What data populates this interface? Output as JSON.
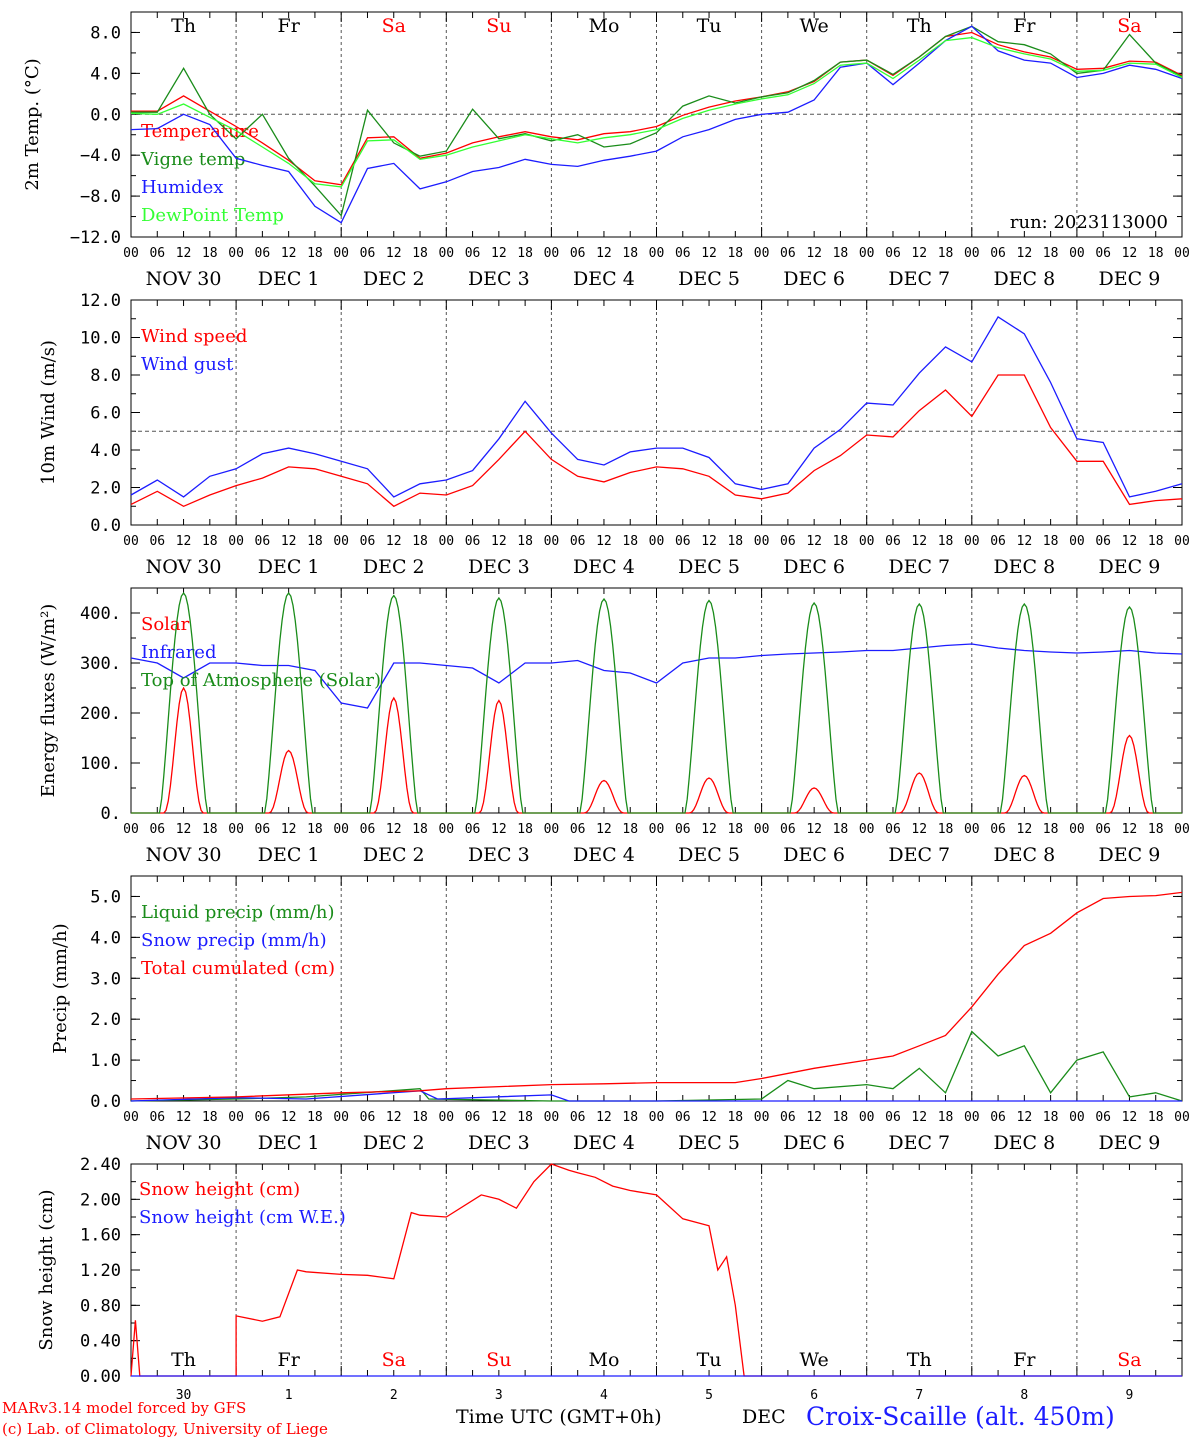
{
  "days": [
    "Th",
    "Fr",
    "Sa",
    "Su",
    "Mo",
    "Tu",
    "We",
    "Th",
    "Fr",
    "Sa"
  ],
  "weekend_days": [
    2,
    3,
    9
  ],
  "date_labels": [
    "NOV 30",
    "DEC  1",
    "DEC  2",
    "DEC  3",
    "DEC  4",
    "DEC  5",
    "DEC  6",
    "DEC  7",
    "DEC  8",
    "DEC  9"
  ],
  "hour_labels": [
    "00",
    "06",
    "12",
    "18"
  ],
  "hour_end": "00",
  "run_label": "run: 2023113000",
  "footer": {
    "credit1": "MARv3.14 model forced by GFS",
    "credit2": "(c) Lab. of Climatology, University of Liege",
    "xlabel": "Time UTC (GMT+0h)",
    "month": "DEC",
    "day_numbers": [
      "30",
      "1",
      "2",
      "3",
      "4",
      "5",
      "6",
      "7",
      "8",
      "9"
    ],
    "station": "Croix-Scaille (alt. 450m)"
  },
  "colors": {
    "red": "#ff0000",
    "green": "#1a8c1a",
    "blue": "#1c1cff",
    "lightgreen": "#33ff33",
    "text": "#000000",
    "grid": "#555555"
  },
  "chart_data": [
    {
      "type": "line",
      "ylabel": "2m Temp. (°C)",
      "ylim": [
        -12,
        10
      ],
      "yticks": [
        "8.0",
        "4.0",
        "0.0",
        "−4.0",
        "−8.0",
        "−12.0"
      ],
      "ytick_values": [
        8,
        4,
        0,
        -4,
        -8,
        -12
      ],
      "hline": 0,
      "x_unit": "hours from 2023-11-30 00 UTC",
      "series": [
        {
          "name": "Temperature",
          "color": "red",
          "x": [
            0,
            6,
            12,
            18,
            24,
            30,
            36,
            42,
            48,
            54,
            60,
            66,
            72,
            78,
            84,
            90,
            96,
            102,
            108,
            114,
            120,
            126,
            132,
            138,
            144,
            150,
            156,
            162,
            168,
            174,
            180,
            186,
            192,
            198,
            204,
            210,
            216,
            222,
            228,
            234,
            240
          ],
          "y": [
            0.3,
            0.3,
            1.8,
            0.3,
            -1.2,
            -2.8,
            -4.5,
            -6.5,
            -6.9,
            -2.3,
            -2.2,
            -4.3,
            -3.8,
            -2.8,
            -2.2,
            -1.7,
            -2.2,
            -2.5,
            -1.9,
            -1.7,
            -1.2,
            -0.1,
            0.7,
            1.3,
            1.7,
            2.2,
            3.2,
            5.1,
            5.3,
            3.8,
            5.6,
            7.6,
            8.0,
            6.8,
            6.1,
            5.6,
            4.4,
            4.5,
            5.2,
            5.1,
            3.8
          ]
        },
        {
          "name": "Vigne temp",
          "color": "green",
          "x": [
            0,
            6,
            12,
            18,
            24,
            30,
            36,
            42,
            48,
            54,
            60,
            66,
            72,
            78,
            84,
            90,
            96,
            102,
            108,
            114,
            120,
            126,
            132,
            138,
            144,
            150,
            156,
            162,
            168,
            174,
            180,
            186,
            192,
            198,
            204,
            210,
            216,
            222,
            228,
            234,
            240
          ],
          "y": [
            0.2,
            0.2,
            4.5,
            0.0,
            -2.4,
            0.0,
            -4.3,
            -7.0,
            -9.9,
            0.4,
            -2.8,
            -4.1,
            -3.6,
            0.5,
            -2.4,
            -1.9,
            -2.6,
            -2.0,
            -3.2,
            -2.9,
            -1.8,
            0.8,
            1.8,
            1.1,
            1.7,
            2.1,
            3.3,
            5.1,
            5.3,
            3.9,
            5.6,
            7.6,
            8.6,
            7.1,
            6.8,
            5.9,
            4.0,
            4.3,
            7.8,
            5.0,
            3.7
          ]
        },
        {
          "name": "Humidex",
          "color": "blue",
          "x": [
            0,
            6,
            12,
            18,
            24,
            30,
            36,
            42,
            48,
            54,
            60,
            66,
            72,
            78,
            84,
            90,
            96,
            102,
            108,
            114,
            120,
            126,
            132,
            138,
            144,
            150,
            156,
            162,
            168,
            174,
            180,
            186,
            192,
            198,
            204,
            210,
            216,
            222,
            228,
            234,
            240
          ],
          "y": [
            -1.5,
            -1.4,
            0.0,
            -1.0,
            -4.3,
            -5.0,
            -5.6,
            -9.0,
            -10.6,
            -5.3,
            -4.8,
            -7.3,
            -6.6,
            -5.6,
            -5.2,
            -4.4,
            -4.9,
            -5.1,
            -4.5,
            -4.1,
            -3.6,
            -2.2,
            -1.5,
            -0.5,
            0.0,
            0.2,
            1.4,
            4.6,
            5.0,
            2.9,
            5.0,
            7.2,
            8.6,
            6.2,
            5.3,
            5.0,
            3.6,
            4.0,
            4.8,
            4.4,
            3.5
          ]
        },
        {
          "name": "DewPoint Temp",
          "color": "lightgreen",
          "x": [
            0,
            6,
            12,
            18,
            24,
            30,
            36,
            42,
            48,
            54,
            60,
            66,
            72,
            78,
            84,
            90,
            96,
            102,
            108,
            114,
            120,
            126,
            132,
            138,
            144,
            150,
            156,
            162,
            168,
            174,
            180,
            186,
            192,
            198,
            204,
            210,
            216,
            222,
            228,
            234,
            240
          ],
          "y": [
            0.1,
            0.0,
            1.0,
            -0.3,
            -1.6,
            -3.2,
            -4.8,
            -6.8,
            -7.1,
            -2.6,
            -2.5,
            -4.4,
            -4.0,
            -3.2,
            -2.6,
            -2.0,
            -2.4,
            -2.8,
            -2.3,
            -2.0,
            -1.5,
            -0.4,
            0.4,
            1.0,
            1.5,
            1.9,
            3.0,
            4.8,
            5.0,
            3.5,
            5.3,
            7.2,
            7.5,
            6.5,
            5.9,
            5.4,
            4.2,
            4.3,
            5.0,
            4.9,
            3.6
          ]
        }
      ]
    },
    {
      "type": "line",
      "ylabel": "10m Wind (m/s)",
      "ylim": [
        0,
        12
      ],
      "yticks": [
        "12.0",
        "10.0",
        "8.0",
        "6.0",
        "4.0",
        "2.0",
        "0.0"
      ],
      "ytick_values": [
        12,
        10,
        8,
        6,
        4,
        2,
        0
      ],
      "hline": 5,
      "series": [
        {
          "name": "Wind speed",
          "color": "red",
          "x": [
            0,
            6,
            12,
            18,
            24,
            30,
            36,
            42,
            48,
            54,
            60,
            66,
            72,
            78,
            84,
            90,
            96,
            102,
            108,
            114,
            120,
            126,
            132,
            138,
            144,
            150,
            156,
            162,
            168,
            174,
            180,
            186,
            192,
            198,
            204,
            210,
            216,
            222,
            228,
            234,
            240
          ],
          "y": [
            1.1,
            1.8,
            1.0,
            1.6,
            2.1,
            2.5,
            3.1,
            3.0,
            2.6,
            2.2,
            1.0,
            1.7,
            1.6,
            2.1,
            3.5,
            5.0,
            3.5,
            2.6,
            2.3,
            2.8,
            3.1,
            3.0,
            2.6,
            1.6,
            1.4,
            1.7,
            2.9,
            3.7,
            4.8,
            4.7,
            6.1,
            7.2,
            5.8,
            8.0,
            8.0,
            5.2,
            3.4,
            3.4,
            1.1,
            1.3,
            1.4
          ]
        },
        {
          "name": "Wind gust",
          "color": "blue",
          "x": [
            0,
            6,
            12,
            18,
            24,
            30,
            36,
            42,
            48,
            54,
            60,
            66,
            72,
            78,
            84,
            90,
            96,
            102,
            108,
            114,
            120,
            126,
            132,
            138,
            144,
            150,
            156,
            162,
            168,
            174,
            180,
            186,
            192,
            198,
            204,
            210,
            216,
            222,
            228,
            234,
            240
          ],
          "y": [
            1.6,
            2.4,
            1.5,
            2.6,
            3.0,
            3.8,
            4.1,
            3.8,
            3.4,
            3.0,
            1.5,
            2.2,
            2.4,
            2.9,
            4.6,
            6.6,
            4.9,
            3.5,
            3.2,
            3.9,
            4.1,
            4.1,
            3.6,
            2.2,
            1.9,
            2.2,
            4.1,
            5.1,
            6.5,
            6.4,
            8.1,
            9.5,
            8.7,
            11.1,
            10.2,
            7.6,
            4.6,
            4.4,
            1.5,
            1.8,
            2.2
          ]
        }
      ]
    },
    {
      "type": "line",
      "ylabel": "Energy fluxes (W/m²)",
      "ylim": [
        0,
        450
      ],
      "yticks": [
        "400.",
        "300.",
        "200.",
        "100.",
        "0."
      ],
      "ytick_values": [
        400,
        300,
        200,
        100,
        0
      ],
      "series": [
        {
          "name": "Solar",
          "color": "red",
          "peaks": [
            250,
            125,
            230,
            225,
            65,
            70,
            50,
            80,
            75,
            155
          ]
        },
        {
          "name": "Infrared",
          "color": "blue",
          "x": [
            0,
            6,
            12,
            18,
            24,
            30,
            36,
            42,
            48,
            54,
            60,
            66,
            72,
            78,
            84,
            90,
            96,
            102,
            108,
            114,
            120,
            126,
            132,
            138,
            144,
            150,
            156,
            162,
            168,
            174,
            180,
            186,
            192,
            198,
            204,
            210,
            216,
            222,
            228,
            234,
            240
          ],
          "y": [
            310,
            300,
            270,
            300,
            300,
            295,
            295,
            285,
            220,
            210,
            300,
            300,
            295,
            290,
            260,
            300,
            300,
            305,
            285,
            280,
            260,
            300,
            310,
            310,
            315,
            318,
            320,
            322,
            325,
            325,
            330,
            335,
            338,
            330,
            325,
            322,
            320,
            322,
            325,
            320,
            318
          ]
        },
        {
          "name": "Top of Atmosphere (Solar)",
          "color": "green",
          "peaks": [
            440,
            440,
            435,
            430,
            428,
            425,
            420,
            418,
            418,
            412
          ]
        }
      ]
    },
    {
      "type": "line",
      "ylabel": "Precip (mm/h)",
      "ylim": [
        0,
        5.5
      ],
      "yticks": [
        "5.0",
        "4.0",
        "3.0",
        "2.0",
        "1.0",
        "0.0"
      ],
      "ytick_values": [
        5,
        4,
        3,
        2,
        1,
        0
      ],
      "series": [
        {
          "name": "Liquid precip (mm/h)",
          "color": "green",
          "x": [
            0,
            24,
            40,
            66,
            68,
            96,
            120,
            144,
            150,
            156,
            168,
            174,
            180,
            186,
            192,
            198,
            204,
            210,
            216,
            222,
            228,
            234,
            240
          ],
          "y": [
            0,
            0.05,
            0.1,
            0.3,
            0.05,
            0,
            0,
            0.05,
            0.5,
            0.3,
            0.4,
            0.3,
            0.8,
            0.2,
            1.7,
            1.1,
            1.35,
            0.2,
            1.0,
            1.2,
            0.1,
            0.2,
            0
          ]
        },
        {
          "name": "Snow precip (mm/h)",
          "color": "blue",
          "x": [
            0,
            24,
            40,
            66,
            70,
            96,
            100,
            120,
            144,
            240
          ],
          "y": [
            0,
            0.08,
            0.05,
            0.25,
            0.05,
            0.15,
            0,
            0,
            0,
            0
          ]
        },
        {
          "name": "Total cumulated (cm)",
          "color": "red",
          "x": [
            0,
            24,
            48,
            66,
            72,
            96,
            108,
            120,
            138,
            144,
            156,
            168,
            174,
            180,
            186,
            192,
            198,
            204,
            210,
            216,
            222,
            228,
            234,
            240
          ],
          "y": [
            0.05,
            0.1,
            0.2,
            0.25,
            0.3,
            0.4,
            0.42,
            0.45,
            0.45,
            0.55,
            0.8,
            1.0,
            1.1,
            1.35,
            1.6,
            2.3,
            3.1,
            3.8,
            4.1,
            4.6,
            4.95,
            5.0,
            5.02,
            5.1
          ]
        }
      ]
    },
    {
      "type": "line",
      "ylabel": "Snow height (cm)",
      "ylim": [
        0,
        2.4
      ],
      "yticks": [
        "2.40",
        "2.00",
        "1.60",
        "1.20",
        "0.80",
        "0.40",
        "0.00"
      ],
      "ytick_values": [
        2.4,
        2.0,
        1.6,
        1.2,
        0.8,
        0.4,
        0.0
      ],
      "series": [
        {
          "name": "Snow height (cm)",
          "color": "red",
          "x": [
            0,
            1,
            2,
            24,
            24,
            30,
            34,
            38,
            40,
            48,
            54,
            60,
            64,
            66,
            72,
            80,
            84,
            88,
            92,
            96,
            100,
            102,
            106,
            110,
            114,
            120,
            126,
            132,
            134,
            136,
            138,
            140,
            142,
            144,
            150,
            180,
            240
          ],
          "y": [
            0,
            0.63,
            0,
            0,
            0.68,
            0.62,
            0.67,
            1.2,
            1.18,
            1.15,
            1.14,
            1.1,
            1.85,
            1.82,
            1.8,
            2.05,
            2.0,
            1.9,
            2.2,
            2.4,
            2.33,
            2.3,
            2.25,
            2.15,
            2.1,
            2.05,
            1.78,
            1.7,
            1.2,
            1.35,
            0.8,
            0,
            0,
            0,
            0,
            0,
            0
          ]
        },
        {
          "name": "Snow height (cm W.E.)",
          "color": "blue",
          "x": [
            0,
            240
          ],
          "y": [
            0,
            0
          ]
        }
      ]
    }
  ]
}
